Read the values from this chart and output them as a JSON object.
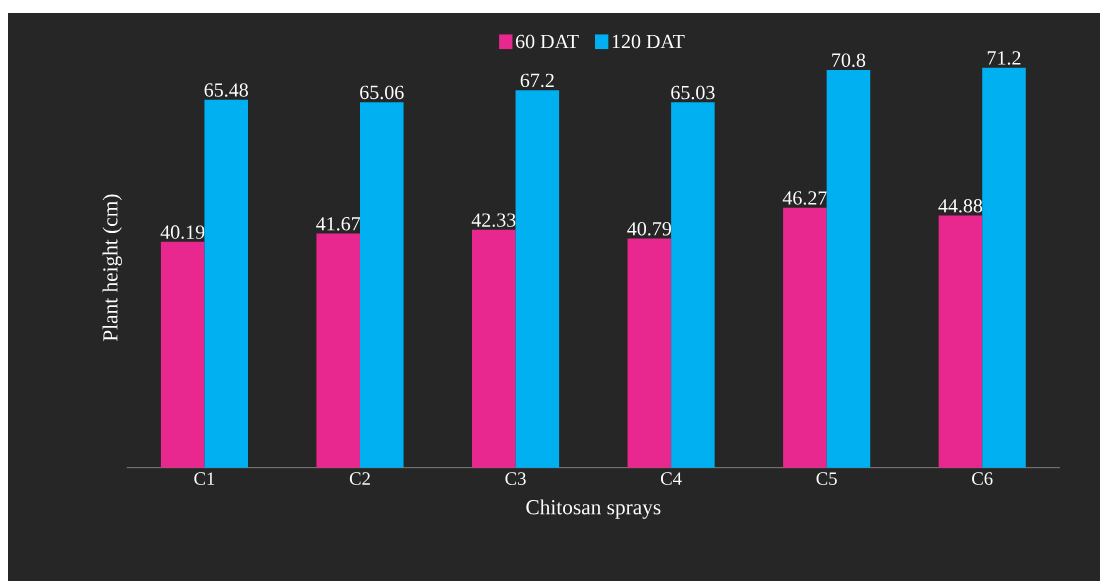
{
  "chart_data": {
    "type": "bar",
    "xlabel": "Chitosan sprays",
    "ylabel": "Plant height (cm)",
    "categories": [
      "C1",
      "C2",
      "C3",
      "C4",
      "C5",
      "C6"
    ],
    "series": [
      {
        "name": "60 DAT",
        "color": "#e8288f",
        "values": [
          40.19,
          41.67,
          42.33,
          40.79,
          46.27,
          44.88
        ]
      },
      {
        "name": "120 DAT",
        "color": "#00b0f0",
        "values": [
          65.48,
          65.06,
          67.2,
          65.03,
          70.8,
          71.2
        ]
      }
    ],
    "data_labels": true,
    "legend": "top"
  }
}
